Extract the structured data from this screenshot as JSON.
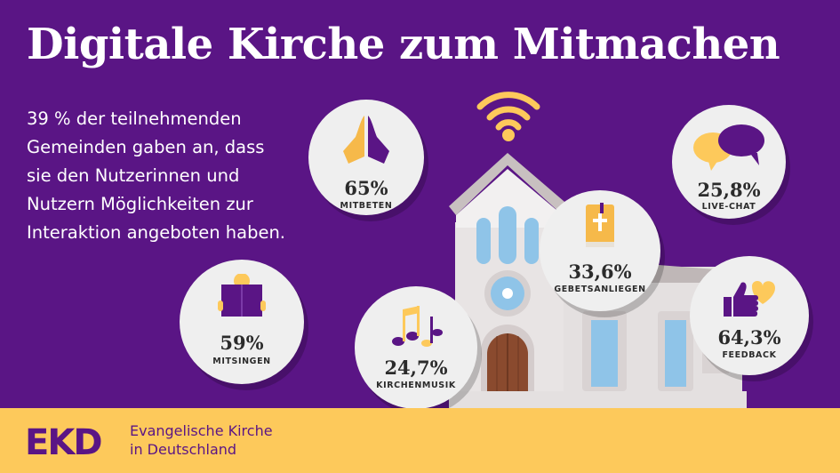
{
  "title": "Digitale Kirche zum Mitmachen",
  "intro": [
    "39 % der teilnehmenden",
    "Gemeinden gaben an, dass",
    "sie den Nutzerinnen und",
    "Nutzern Möglichkeiten zur",
    "Interaktion angeboten haben."
  ],
  "stats": {
    "mitbeten": {
      "value": "65%",
      "label": "MITBETEN",
      "icon": "praying-hands-icon"
    },
    "livechat": {
      "value": "25,8%",
      "label": "LIVE-CHAT",
      "icon": "chat-bubbles-icon"
    },
    "gebetsanliegen": {
      "value": "33,6%",
      "label": "GEBETSANLIEGEN",
      "icon": "bible-icon"
    },
    "mitsingen": {
      "value": "59%",
      "label": "MITSINGEN",
      "icon": "songbook-icon"
    },
    "kirchenmusik": {
      "value": "24,7%",
      "label": "KIRCHENMUSIK",
      "icon": "music-notes-icon"
    },
    "feedback": {
      "value": "64,3%",
      "label": "FEEDBACK",
      "icon": "thumbs-up-heart-icon"
    }
  },
  "footer": {
    "logo": "EKD",
    "org_line1": "Evangelische Kirche",
    "org_line2": "in Deutschland"
  },
  "colors": {
    "background": "#5a1585",
    "accent": "#fdc95b",
    "circle": "#efefef",
    "window": "#8fc4e8"
  }
}
